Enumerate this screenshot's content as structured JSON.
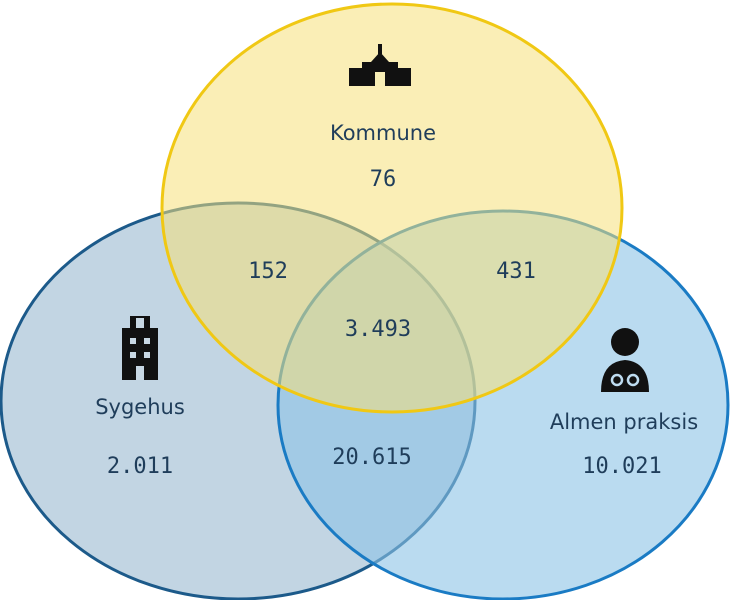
{
  "sets": [
    {
      "label": "Kommune",
      "value": "76"
    },
    {
      "label": "Sygehus",
      "value": "2.011"
    },
    {
      "label": "Almen praksis",
      "value": "10.021"
    }
  ],
  "intersections": [
    {
      "value": "152"
    },
    {
      "value": "431"
    },
    {
      "value": "20.615"
    },
    {
      "value": "3.493"
    }
  ]
}
